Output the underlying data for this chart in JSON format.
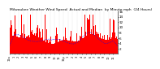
{
  "title_lines": [
    "Milwaukee Weather Wind Speed  Actual and Median  by Minute mph  (24 Hours)"
  ],
  "title_fontsize": 3.2,
  "n_minutes": 1440,
  "ylim": [
    0,
    16
  ],
  "yticks": [
    2,
    4,
    6,
    8,
    10,
    12,
    14,
    16
  ],
  "bar_color": "#FF0000",
  "median_color": "#0000FF",
  "bg_color": "#FFFFFF",
  "plot_bg_color": "#FFFFFF",
  "seed": 12345,
  "x_hour_labels": [
    "12a",
    "1",
    "2",
    "3",
    "4",
    "5",
    "6",
    "7",
    "8",
    "9",
    "10",
    "11",
    "12p",
    "1",
    "2",
    "3",
    "4",
    "5",
    "6",
    "7",
    "8",
    "9",
    "10",
    "11",
    "12a"
  ],
  "vgrid_color": "#999999",
  "ylabel_fontsize": 3.0,
  "xlabel_fontsize": 2.5
}
